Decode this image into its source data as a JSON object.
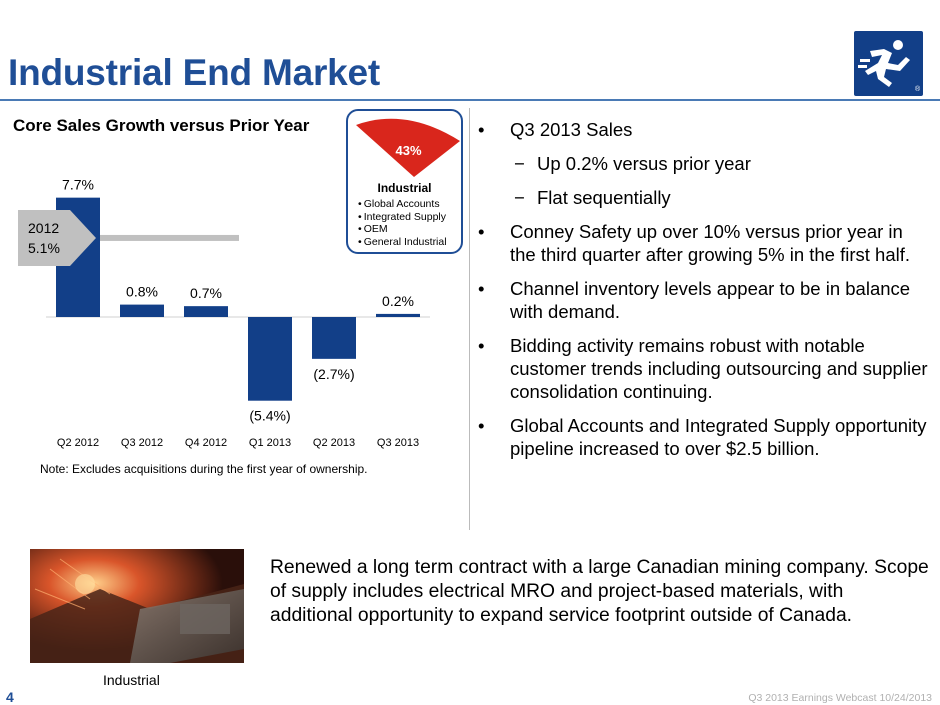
{
  "header": {
    "title": "Industrial End Market"
  },
  "logo": {
    "icon": "running-man-logo-icon",
    "mark": "®",
    "color": "#123f88"
  },
  "chart_data": {
    "type": "bar",
    "title": "Core Sales Growth versus Prior Year",
    "categories": [
      "Q2 2012",
      "Q3 2012",
      "Q4 2012",
      "Q1 2013",
      "Q2 2013",
      "Q3 2013"
    ],
    "values": [
      7.7,
      0.8,
      0.7,
      -5.4,
      -2.7,
      0.2
    ],
    "value_labels": [
      "7.7%",
      "0.8%",
      "0.7%",
      "(5.4%)",
      "(2.7%)",
      "0.2%"
    ],
    "bar_color": "#123f88",
    "reference_line": {
      "label_line1": "2012",
      "label_line2": "5.1%",
      "value": 5.1,
      "color": "#c0c0c0"
    },
    "grid": false,
    "legend": "none",
    "note": "Note:  Excludes acquisitions during the first year of ownership."
  },
  "inset": {
    "percent": "43%",
    "label": "Industrial",
    "items": [
      "Global Accounts",
      "Integrated Supply",
      "OEM",
      "General Industrial"
    ],
    "wedge_color": "#d9261c"
  },
  "bullets": [
    {
      "type": "bullet",
      "text": "Q3 2013 Sales"
    },
    {
      "type": "sub",
      "text": "Up 0.2% versus prior year"
    },
    {
      "type": "sub",
      "text": "Flat sequentially"
    },
    {
      "type": "bullet",
      "text": "Conney Safety up over 10% versus prior year in the third quarter after growing 5% in the first half."
    },
    {
      "type": "bullet",
      "text": "Channel inventory levels appear to be in balance with demand."
    },
    {
      "type": "bullet",
      "text": "Bidding activity remains robust with notable customer trends including outsourcing and supplier consolidation continuing."
    },
    {
      "type": "bullet",
      "text": "Global Accounts and Integrated Supply opportunity pipeline increased to over $2.5 billion."
    }
  ],
  "bullet_marks": {
    "bullet": "•",
    "sub": "−"
  },
  "photo": {
    "caption": "Industrial"
  },
  "callout": "Renewed a long term contract with a large Canadian mining company. Scope of supply includes electrical MRO and project-based materials, with additional opportunity to expand service footprint outside of Canada.",
  "footer": {
    "page_number": "4",
    "text": "Q3 2013 Earnings Webcast 10/24/2013"
  }
}
